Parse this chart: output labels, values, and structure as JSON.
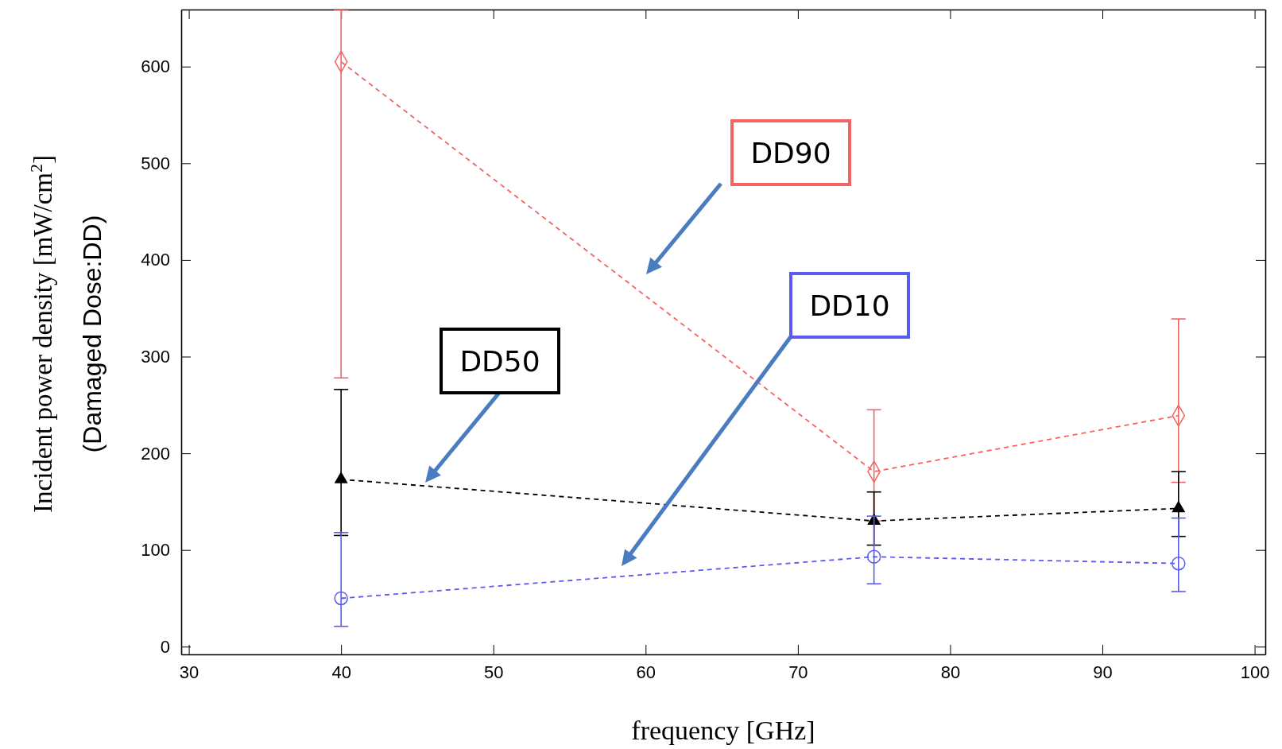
{
  "chart_data": {
    "type": "line",
    "xlabel": "frequency [GHz]",
    "ylabel": "Incident power density [mW/cm$^{2}$]\n(Damaged Dose:DD)",
    "x": [
      40,
      75,
      95
    ],
    "xlim": [
      29.5,
      100.7
    ],
    "xticks": [
      30,
      40,
      50,
      60,
      70,
      80,
      90,
      100
    ],
    "ylim": [
      -8,
      659
    ],
    "yticks": [
      0,
      100,
      200,
      300,
      400,
      500,
      600
    ],
    "line_style": "dashed",
    "grid": false,
    "legend": false,
    "series": [
      {
        "name": "DD90",
        "color": "#f06464",
        "marker": "diamond",
        "values": [
          605,
          181,
          239
        ],
        "errors": [
          [
            278,
            659
          ],
          [
            130,
            245
          ],
          [
            170,
            339
          ]
        ]
      },
      {
        "name": "DD50",
        "color": "#000000",
        "marker": "triangle",
        "values": [
          173,
          130,
          143
        ],
        "errors": [
          [
            115,
            266
          ],
          [
            105,
            160
          ],
          [
            114,
            181
          ]
        ]
      },
      {
        "name": "DD10",
        "color": "#5a5aee",
        "marker": "circle",
        "values": [
          50,
          93,
          86
        ],
        "errors": [
          [
            21,
            118
          ],
          [
            65,
            135
          ],
          [
            57,
            133
          ]
        ]
      }
    ]
  }
}
